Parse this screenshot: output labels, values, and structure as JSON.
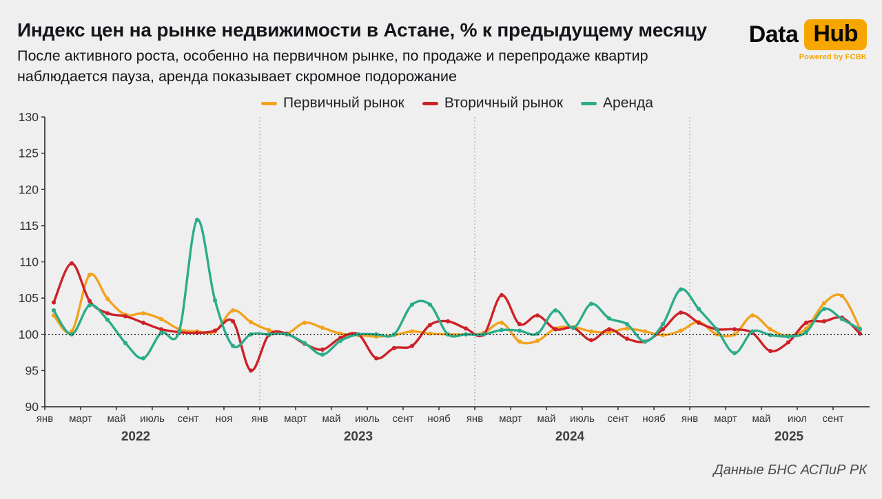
{
  "header": {
    "title": "Индекс цен на рынке недвижимости в Астане, % к предыдущему месяцу",
    "subtitle_line1": "После активного роста, особенно на первичном рынке, по продаже и перепродаже квартир",
    "subtitle_line2": "наблюдается пауза, аренда показывает скромное подорожание"
  },
  "logo": {
    "part1": "Data",
    "part2": "Hub",
    "tagline": "Powered by FCBK",
    "accent_color": "#F7A600"
  },
  "footer": {
    "source": "Данные БНС АСПиР РК"
  },
  "chart_data": {
    "type": "line",
    "ylim": [
      90,
      130
    ],
    "ytick_step": 5,
    "yticks": [
      90,
      95,
      100,
      105,
      110,
      115,
      120,
      125,
      130
    ],
    "baseline": 100,
    "grid": false,
    "legend_position": "top",
    "background": "#EFEFEF",
    "axis_color": "#3c3c3c",
    "divider_month_indices": [
      12,
      24,
      36
    ],
    "x": [
      "2022-01",
      "2022-02",
      "2022-03",
      "2022-04",
      "2022-05",
      "2022-06",
      "2022-07",
      "2022-08",
      "2022-09",
      "2022-10",
      "2022-11",
      "2022-12",
      "2023-01",
      "2023-02",
      "2023-03",
      "2023-04",
      "2023-05",
      "2023-06",
      "2023-07",
      "2023-08",
      "2023-09",
      "2023-10",
      "2023-11",
      "2023-12",
      "2024-01",
      "2024-02",
      "2024-03",
      "2024-04",
      "2024-05",
      "2024-06",
      "2024-07",
      "2024-08",
      "2024-09",
      "2024-10",
      "2024-11",
      "2024-12",
      "2025-01",
      "2025-02",
      "2025-03",
      "2025-04",
      "2025-05",
      "2025-06",
      "2025-07",
      "2025-08",
      "2025-09",
      "2025-10"
    ],
    "x_tick_labels": [
      "янв",
      "март",
      "май",
      "июль",
      "сент",
      "ноя",
      "янв",
      "март",
      "май",
      "июль",
      "сент",
      "нояб",
      "янв",
      "март",
      "май",
      "июль",
      "сент",
      "нояб",
      "янв",
      "март",
      "май",
      "июл",
      "сент"
    ],
    "years": [
      "2022",
      "2023",
      "2024",
      "2025"
    ],
    "series": [
      {
        "name": "Первичный рынок",
        "color": "#F3A21D",
        "values": [
          102.6,
          100.4,
          108.2,
          104.9,
          102.7,
          102.9,
          102.1,
          100.7,
          100.4,
          100.4,
          103.3,
          101.7,
          100.6,
          100.1,
          101.6,
          100.9,
          100.1,
          99.9,
          99.7,
          99.9,
          100.4,
          100.1,
          100.0,
          100.0,
          100.2,
          101.6,
          99.0,
          99.1,
          100.8,
          101.0,
          100.4,
          100.3,
          100.8,
          100.4,
          99.9,
          100.5,
          101.7,
          100.0,
          100.0,
          102.6,
          100.7,
          99.8,
          100.8,
          104.3,
          105.3,
          100.8
        ]
      },
      {
        "name": "Вторичный рынок",
        "color": "#CD2128",
        "values": [
          104.4,
          109.8,
          104.6,
          102.9,
          102.5,
          101.6,
          100.7,
          100.3,
          100.2,
          100.5,
          101.8,
          95.0,
          99.9,
          100.1,
          98.7,
          97.9,
          99.5,
          100.0,
          96.7,
          98.1,
          98.4,
          101.3,
          101.8,
          100.8,
          100.0,
          105.4,
          101.4,
          102.6,
          100.7,
          100.9,
          99.2,
          100.7,
          99.4,
          99.0,
          100.7,
          103.0,
          101.6,
          100.7,
          100.7,
          100.2,
          97.7,
          98.9,
          101.6,
          101.8,
          102.3,
          100.1
        ]
      },
      {
        "name": "Аренда",
        "color": "#2BAC8A",
        "values": [
          103.3,
          100.0,
          104.0,
          102.0,
          98.8,
          96.7,
          100.2,
          100.4,
          115.8,
          104.7,
          98.4,
          100.0,
          100.0,
          100.0,
          98.8,
          97.2,
          99.1,
          100.0,
          100.0,
          100.0,
          104.1,
          104.1,
          100.0,
          100.0,
          100.0,
          100.6,
          100.5,
          100.1,
          103.3,
          100.9,
          104.2,
          102.2,
          101.4,
          99.0,
          101.4,
          106.2,
          103.5,
          100.7,
          97.4,
          100.4,
          99.9,
          99.7,
          100.3,
          103.5,
          102.1,
          100.7
        ]
      }
    ]
  }
}
